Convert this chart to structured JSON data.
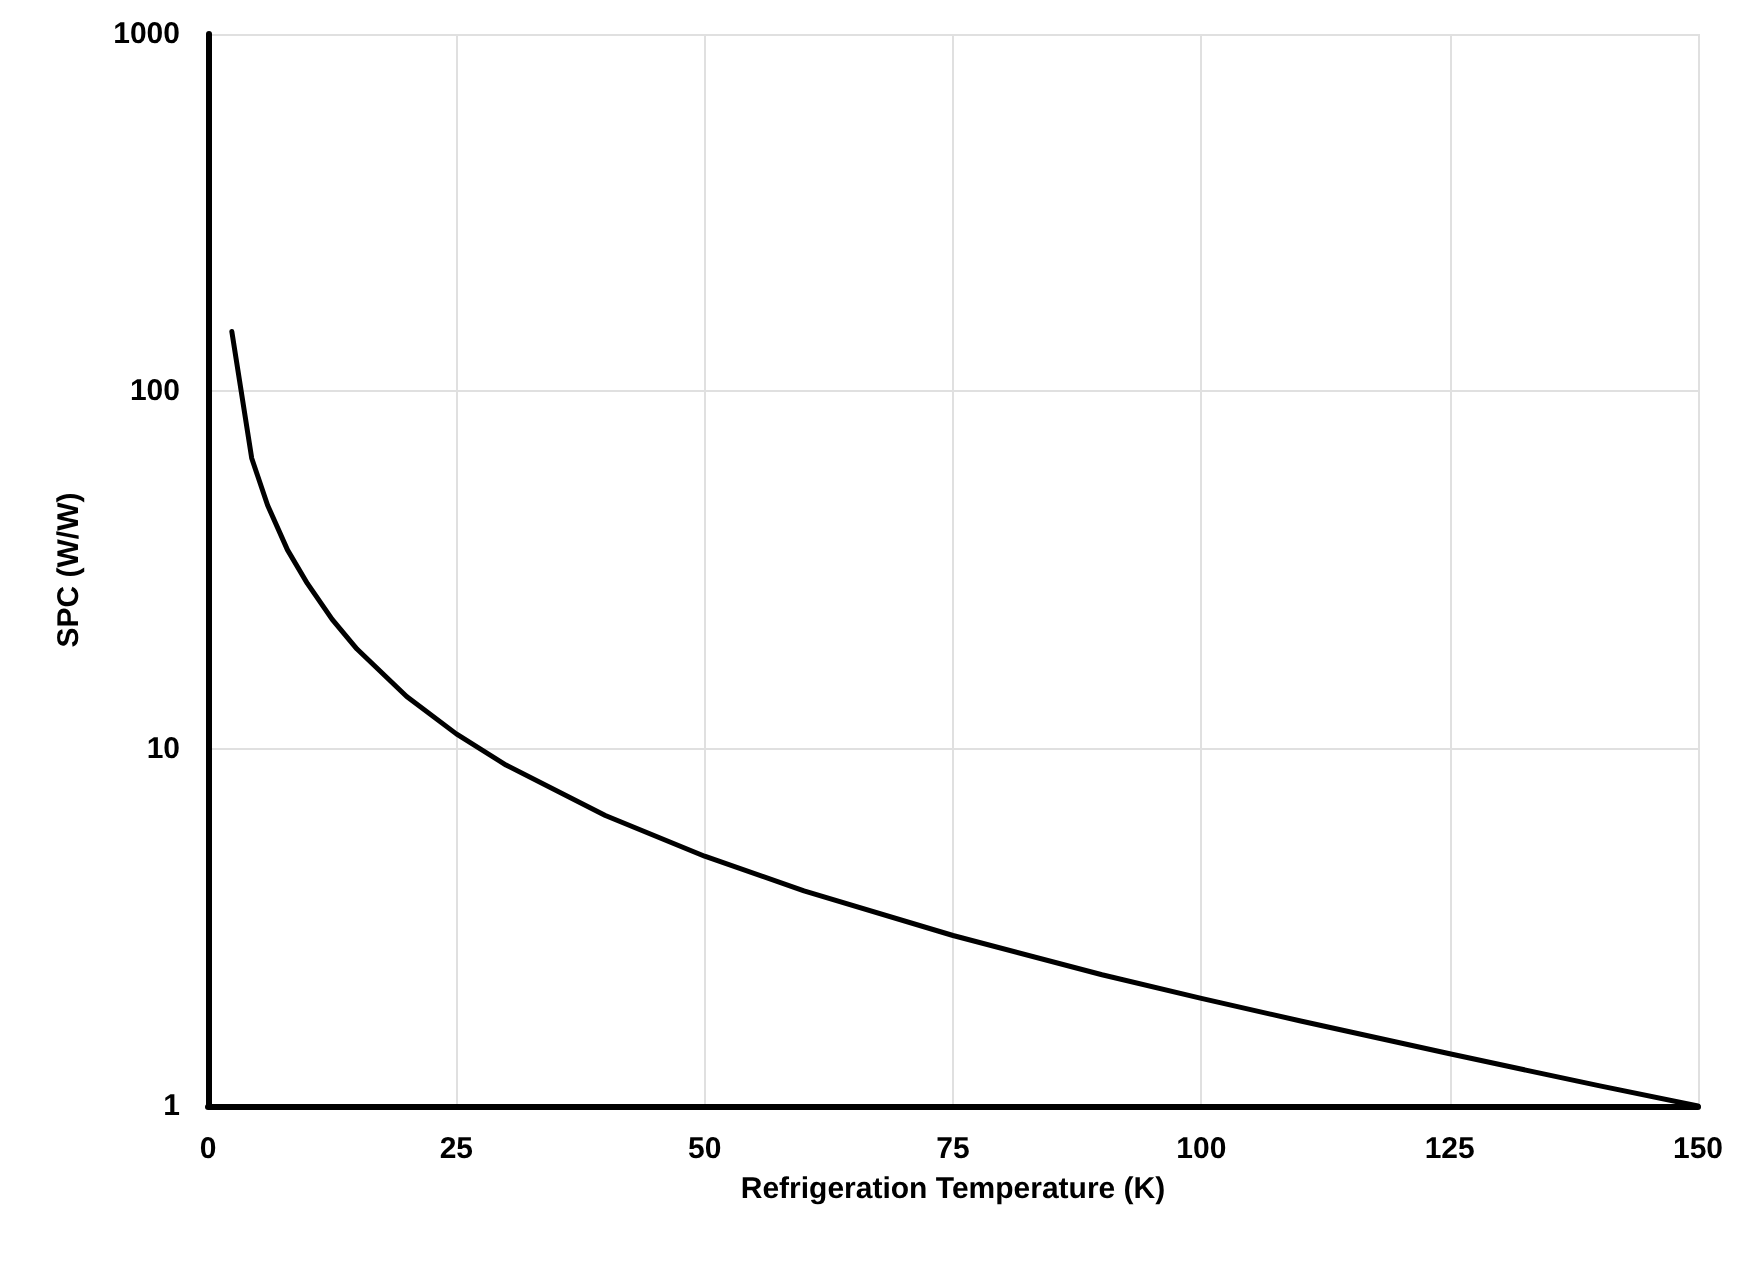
{
  "chart_data": {
    "type": "line",
    "xlabel": "Refrigeration Temperature (K)",
    "ylabel": "SPC (W/W)",
    "x": [
      2.4,
      4.4,
      6,
      8,
      10,
      12.5,
      15,
      20,
      25,
      30,
      40,
      50,
      60,
      75,
      90,
      100,
      110,
      125,
      140,
      150
    ],
    "series": [
      {
        "color": "#000000",
        "values": [
          147,
          65,
          48,
          36,
          29,
          23,
          19,
          14,
          11,
          9,
          6.5,
          5,
          4,
          3,
          2.33,
          2,
          1.73,
          1.4,
          1.14,
          1
        ]
      }
    ],
    "xlim": [
      0,
      150
    ],
    "xticks": [
      0,
      25,
      50,
      75,
      100,
      125,
      150
    ],
    "ylim": [
      1,
      1000
    ],
    "yticks": [
      1,
      10,
      100,
      1000
    ],
    "log": "y",
    "grid": true,
    "marker": "none",
    "line_style": "solid"
  }
}
